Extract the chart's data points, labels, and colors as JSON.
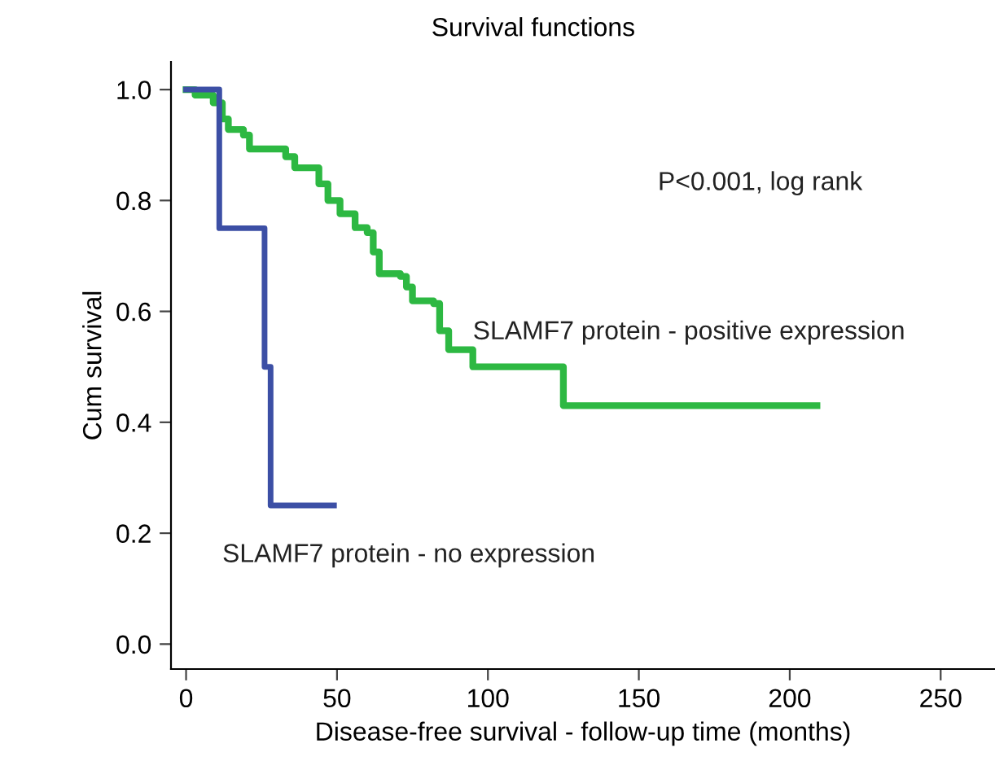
{
  "chart_data": {
    "type": "step",
    "title": "Survival functions",
    "xlabel": "Disease-free survival - follow-up time (months)",
    "ylabel": "Cum survival",
    "xlim": [
      -5,
      268
    ],
    "ylim": [
      -0.045,
      1.05
    ],
    "xticks": [
      0,
      50,
      100,
      150,
      200,
      250
    ],
    "yticks": [
      {
        "value": 0,
        "label": "0.0"
      },
      {
        "value": 0.2,
        "label": "0.2"
      },
      {
        "value": 0.4,
        "label": "0.4"
      },
      {
        "value": 0.6,
        "label": "0.6"
      },
      {
        "value": 0.8,
        "label": "0.8"
      },
      {
        "value": 1.0,
        "label": "1.0"
      }
    ],
    "grid": false,
    "legend": false,
    "line_style": "solid",
    "series": [
      {
        "name": "SLAMF7 protein - positive expression",
        "color": "#2db842",
        "x": [
          0,
          3,
          9,
          12,
          14,
          19,
          21,
          33,
          36,
          44,
          47,
          51,
          56,
          60,
          62,
          64,
          71,
          73,
          75,
          82,
          84,
          87,
          95,
          125,
          209
        ],
        "values": [
          1.0,
          0.99,
          0.976,
          0.947,
          0.928,
          0.918,
          0.893,
          0.879,
          0.859,
          0.83,
          0.8,
          0.776,
          0.751,
          0.742,
          0.707,
          0.668,
          0.663,
          0.644,
          0.619,
          0.614,
          0.565,
          0.531,
          0.5,
          0.43,
          0.43
        ]
      },
      {
        "name": "SLAMF7 protein - no expression",
        "color": "#3c4fa5",
        "x": [
          0,
          11,
          26,
          28,
          49
        ],
        "values": [
          1.0,
          0.75,
          0.5,
          0.25,
          0.25
        ]
      }
    ],
    "annotations": [
      "P<0.001, log rank"
    ]
  }
}
